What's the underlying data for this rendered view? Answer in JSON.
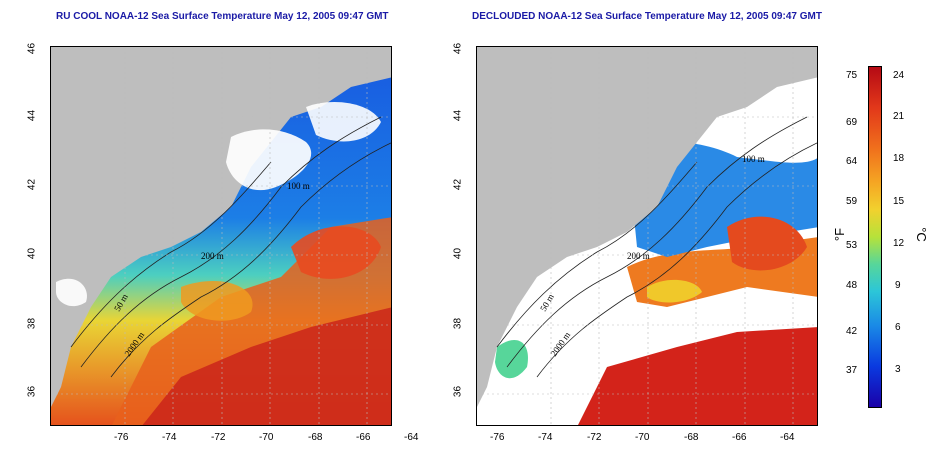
{
  "titles": {
    "left": "RU COOL NOAA-12 Sea Surface Temperature May 12, 2005 09:47 GMT",
    "right": "DECLOUDED NOAA-12 Sea Surface Temperature May 12, 2005 09:47 GMT"
  },
  "axes": {
    "x_ticks": [
      "-76",
      "-74",
      "-72",
      "-70",
      "-68",
      "-66",
      "-64"
    ],
    "y_ticks": [
      "46",
      "44",
      "42",
      "40",
      "38",
      "36"
    ]
  },
  "contours": {
    "label_200": "200 m",
    "label_100": "100 m",
    "label_50": "50 m",
    "label_2000": "2000 m"
  },
  "colorbar": {
    "fahrenheit_ticks": [
      "75",
      "69",
      "64",
      "59",
      "53",
      "48",
      "42",
      "37"
    ],
    "celsius_ticks": [
      "24",
      "21",
      "18",
      "15",
      "12",
      "9",
      "6",
      "3"
    ],
    "unit_f": "°F",
    "unit_c": "°C"
  },
  "colors": {
    "land": "#bebebe",
    "warm": "#d8281a",
    "cold": "#1650d8",
    "title": "#1a1aa6"
  }
}
